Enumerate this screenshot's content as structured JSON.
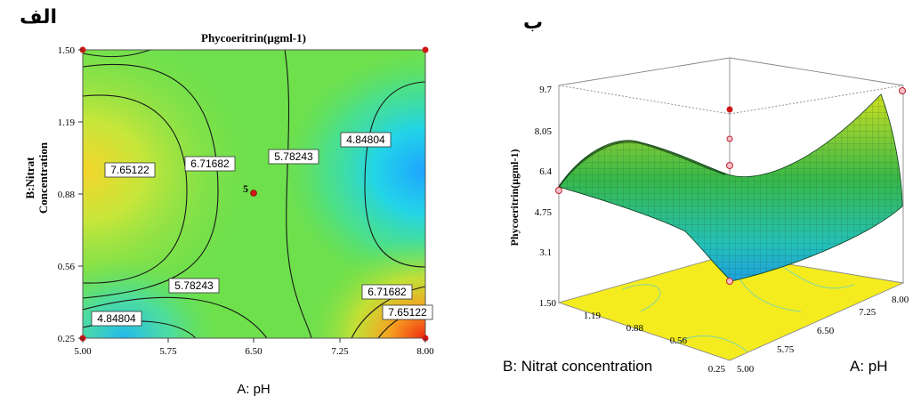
{
  "panel_labels": {
    "left": "الف",
    "right": "ب"
  },
  "chart_data": [
    {
      "type": "contour",
      "title": "Phycoeritrin(µgml-1)",
      "xlabel": "A: pH",
      "ylabel_line1": "B:Nitrat",
      "ylabel_line2": "Concentration",
      "xlim": [
        5.0,
        8.0
      ],
      "ylim": [
        0.25,
        1.5
      ],
      "x_ticks": [
        "5.00",
        "5.75",
        "6.50",
        "7.25",
        "8.00"
      ],
      "y_ticks": [
        "0.25",
        "0.56",
        "0.88",
        "1.19",
        "1.50"
      ],
      "contour_levels": [
        "4.84804",
        "5.78243",
        "6.71682",
        "7.65122"
      ],
      "center_point": {
        "x": 6.5,
        "y": 0.875,
        "label": "5"
      },
      "design_points": [
        {
          "x": 5.0,
          "y": 1.5
        },
        {
          "x": 8.0,
          "y": 1.5
        },
        {
          "x": 5.0,
          "y": 0.25
        },
        {
          "x": 8.0,
          "y": 0.25
        }
      ]
    },
    {
      "type": "surface3d",
      "zlabel": "Phycoeritrin(µgml-1)",
      "xlabel": "A: pH",
      "ylabel": "B: Nitrat concentration",
      "z_ticks": [
        "3.1",
        "4.75",
        "6.4",
        "8.05",
        "9.7"
      ],
      "x_ticks": [
        "5.00",
        "5.75",
        "6.50",
        "7.25",
        "8.00"
      ],
      "y_ticks": [
        "0.25",
        "0.56",
        "0.88",
        "1.19",
        "1.50"
      ],
      "zlim": [
        3.1,
        9.7
      ],
      "colors": {
        "surface_high": "#d7e21a",
        "surface_mid": "#35b84a",
        "surface_low": "#20b8d8",
        "floor": "#f4ec1e"
      }
    }
  ]
}
